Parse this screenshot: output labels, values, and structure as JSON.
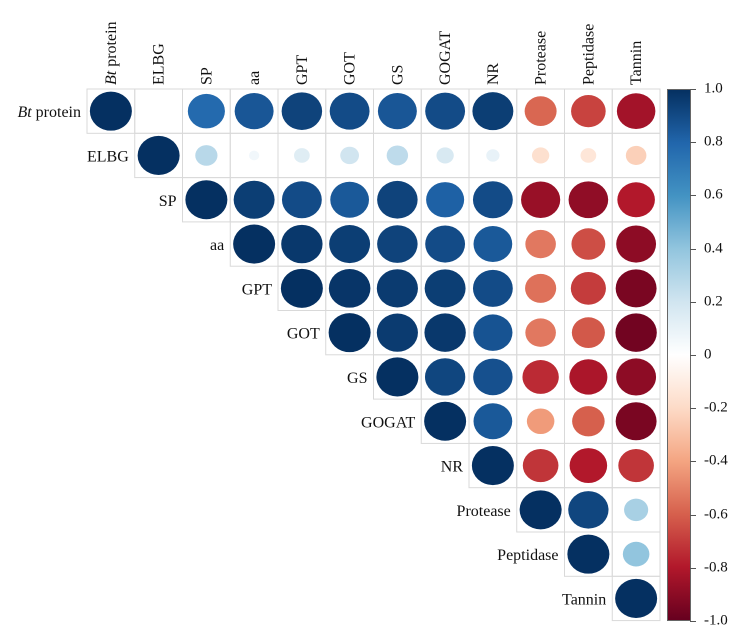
{
  "chart_data": {
    "type": "heatmap",
    "variables": [
      "Bt protein",
      "ELBG",
      "SP",
      "aa",
      "GPT",
      "GOT",
      "GS",
      "GOGAT",
      "NR",
      "Protease",
      "Peptidase",
      "Tannin"
    ],
    "italic_prefix": {
      "Bt protein": "Bt"
    },
    "matrix_upper": [
      [
        1.0,
        0.0,
        0.78,
        0.86,
        0.93,
        0.9,
        0.86,
        0.9,
        0.95,
        -0.58,
        -0.68,
        -0.84
      ],
      [
        null,
        1.0,
        0.28,
        0.06,
        0.14,
        0.2,
        0.26,
        0.17,
        0.1,
        -0.17,
        -0.14,
        -0.24
      ],
      [
        null,
        null,
        1.0,
        0.95,
        0.9,
        0.85,
        0.93,
        0.82,
        0.9,
        -0.87,
        -0.89,
        -0.8
      ],
      [
        null,
        null,
        null,
        1.0,
        0.97,
        0.95,
        0.93,
        0.9,
        0.85,
        -0.53,
        -0.65,
        -0.9
      ],
      [
        null,
        null,
        null,
        null,
        1.0,
        0.98,
        0.96,
        0.95,
        0.9,
        -0.55,
        -0.7,
        -0.95
      ],
      [
        null,
        null,
        null,
        null,
        null,
        1.0,
        0.96,
        0.97,
        0.87,
        -0.53,
        -0.62,
        -0.97
      ],
      [
        null,
        null,
        null,
        null,
        null,
        null,
        1.0,
        0.92,
        0.88,
        -0.75,
        -0.82,
        -0.9
      ],
      [
        null,
        null,
        null,
        null,
        null,
        null,
        null,
        1.0,
        0.85,
        -0.43,
        -0.6,
        -0.95
      ],
      [
        null,
        null,
        null,
        null,
        null,
        null,
        null,
        null,
        1.0,
        -0.72,
        -0.8,
        -0.72
      ],
      [
        null,
        null,
        null,
        null,
        null,
        null,
        null,
        null,
        null,
        1.0,
        0.92,
        0.33
      ],
      [
        null,
        null,
        null,
        null,
        null,
        null,
        null,
        null,
        null,
        null,
        1.0,
        0.4
      ],
      [
        null,
        null,
        null,
        null,
        null,
        null,
        null,
        null,
        null,
        null,
        null,
        1.0
      ]
    ],
    "colorbar": {
      "range": [
        -1.0,
        1.0
      ],
      "ticks": [
        "1.0",
        "0.8",
        "0.6",
        "0.4",
        "0.2",
        "0",
        "-0.2",
        "-0.4",
        "-0.6",
        "-0.8",
        "-1.0"
      ],
      "colors": [
        "#67001f",
        "#b2182b",
        "#d6604d",
        "#f4a582",
        "#fddbc7",
        "#ffffff",
        "#d1e5f0",
        "#92c5de",
        "#4393c3",
        "#2166ac",
        "#053061"
      ]
    },
    "title": "",
    "xlabel": "",
    "ylabel": ""
  }
}
